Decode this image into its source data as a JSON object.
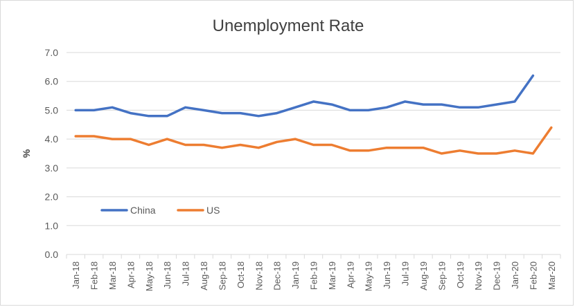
{
  "chart_data": {
    "type": "line",
    "title": "Unemployment Rate",
    "xlabel": "",
    "ylabel": "%",
    "ylim": [
      0,
      7
    ],
    "y_ticks": [
      "0.0",
      "1.0",
      "2.0",
      "3.0",
      "4.0",
      "5.0",
      "6.0",
      "7.0"
    ],
    "grid": true,
    "legend_position": "lower-left",
    "categories": [
      "Jan-18",
      "Feb-18",
      "Mar-18",
      "Apr-18",
      "May-18",
      "Jun-18",
      "Jul-18",
      "Aug-18",
      "Sep-18",
      "Oct-18",
      "Nov-18",
      "Dec-18",
      "Jan-19",
      "Feb-19",
      "Mar-19",
      "Apr-19",
      "May-19",
      "Jun-19",
      "Jul-19",
      "Aug-19",
      "Sep-19",
      "Oct-19",
      "Nov-19",
      "Dec-19",
      "Jan-20",
      "Feb-20",
      "Mar-20"
    ],
    "series": [
      {
        "name": "China",
        "color": "#4472c4",
        "values": [
          5.0,
          5.0,
          5.1,
          4.9,
          4.8,
          4.8,
          5.1,
          5.0,
          4.9,
          4.9,
          4.8,
          4.9,
          5.1,
          5.3,
          5.2,
          5.0,
          5.0,
          5.1,
          5.3,
          5.2,
          5.2,
          5.1,
          5.1,
          5.2,
          5.3,
          6.2,
          null
        ]
      },
      {
        "name": "US",
        "color": "#ed7d31",
        "values": [
          4.1,
          4.1,
          4.0,
          4.0,
          3.8,
          4.0,
          3.8,
          3.8,
          3.7,
          3.8,
          3.7,
          3.9,
          4.0,
          3.8,
          3.8,
          3.6,
          3.6,
          3.7,
          3.7,
          3.7,
          3.5,
          3.6,
          3.5,
          3.5,
          3.6,
          3.5,
          4.4
        ]
      }
    ]
  },
  "colors": {
    "grid": "#d9d9d9",
    "text": "#595959"
  }
}
